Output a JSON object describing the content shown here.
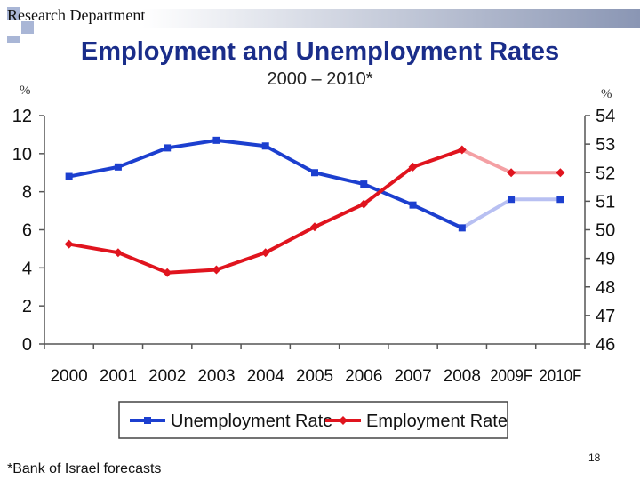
{
  "header": {
    "department": "Research Department"
  },
  "title": "Employment and Unemployment Rates",
  "subtitle": "2000 – 2010*",
  "footnote": "*Bank of Israel forecasts",
  "page_number": "18",
  "chart_data": {
    "type": "line",
    "categories": [
      "2000",
      "2001",
      "2002",
      "2003",
      "2004",
      "2005",
      "2006",
      "2007",
      "2008",
      "2009F",
      "2010F"
    ],
    "y_left": {
      "label": "%",
      "range": [
        0,
        12
      ],
      "ticks": [
        "0",
        "2",
        "4",
        "6",
        "8",
        "10",
        "12"
      ]
    },
    "y_right": {
      "label": "%",
      "range": [
        46,
        54
      ],
      "ticks": [
        "46",
        "47",
        "48",
        "49",
        "50",
        "51",
        "52",
        "53",
        "54"
      ]
    },
    "series": [
      {
        "name": "Unemployment Rate",
        "axis": "left",
        "color": "#1c3fcf",
        "forecast_color": "#b8c0f2",
        "values": [
          8.8,
          9.3,
          10.3,
          10.7,
          10.4,
          9.0,
          8.4,
          7.3,
          6.1,
          7.6,
          7.6
        ],
        "forecast_from_index": 8
      },
      {
        "name": "Employment Rate",
        "axis": "right",
        "color": "#e0141e",
        "forecast_color": "#f4a0a4",
        "values": [
          49.5,
          49.2,
          48.5,
          48.6,
          49.2,
          50.1,
          50.9,
          52.2,
          52.8,
          52.0,
          52.0
        ],
        "forecast_from_index": 8
      }
    ],
    "grid": false,
    "legend": "bottom"
  }
}
